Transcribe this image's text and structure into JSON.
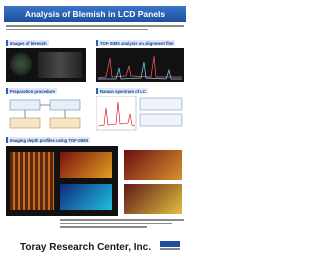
{
  "header": {
    "title": "Analysis of Blemish in LCD Panels"
  },
  "sections": [
    {
      "title": "Images of blemish"
    },
    {
      "title": "TOF-SIMS analysis on alignment film"
    },
    {
      "title": "Preparation procedure"
    },
    {
      "title": "Raman spectrum of LC"
    },
    {
      "title": "Imaging depth profiles using TOF-SIMS"
    }
  ],
  "footer": {
    "company": "Toray Research Center, Inc."
  }
}
